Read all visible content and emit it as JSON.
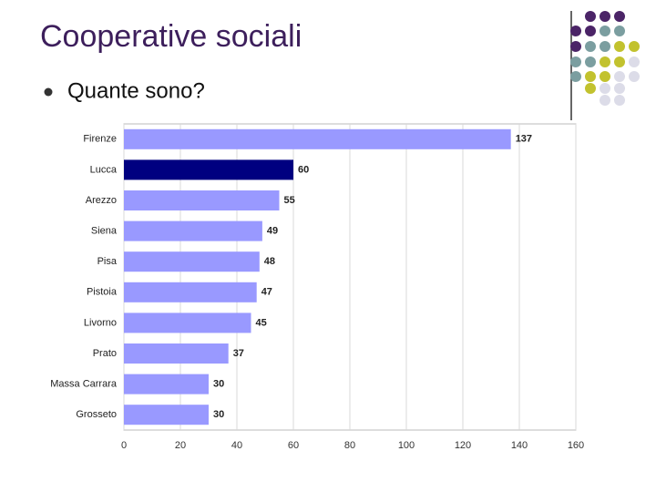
{
  "slide": {
    "title": "Cooperative sociali",
    "bullet": "Quante sono?"
  },
  "chart_data": {
    "type": "bar",
    "orientation": "horizontal",
    "categories": [
      "Firenze",
      "Lucca",
      "Arezzo",
      "Siena",
      "Pisa",
      "Pistoia",
      "Livorno",
      "Prato",
      "Massa Carrara",
      "Grosseto"
    ],
    "values": [
      137,
      60,
      55,
      49,
      48,
      47,
      45,
      37,
      30,
      30
    ],
    "colors": [
      "#9999ff",
      "#000080",
      "#9999ff",
      "#9999ff",
      "#9999ff",
      "#9999ff",
      "#9999ff",
      "#9999ff",
      "#9999ff",
      "#9999ff"
    ],
    "xlim": [
      0,
      160
    ],
    "xticks": [
      0,
      20,
      40,
      60,
      80,
      100,
      120,
      140,
      160
    ],
    "grid": true
  }
}
